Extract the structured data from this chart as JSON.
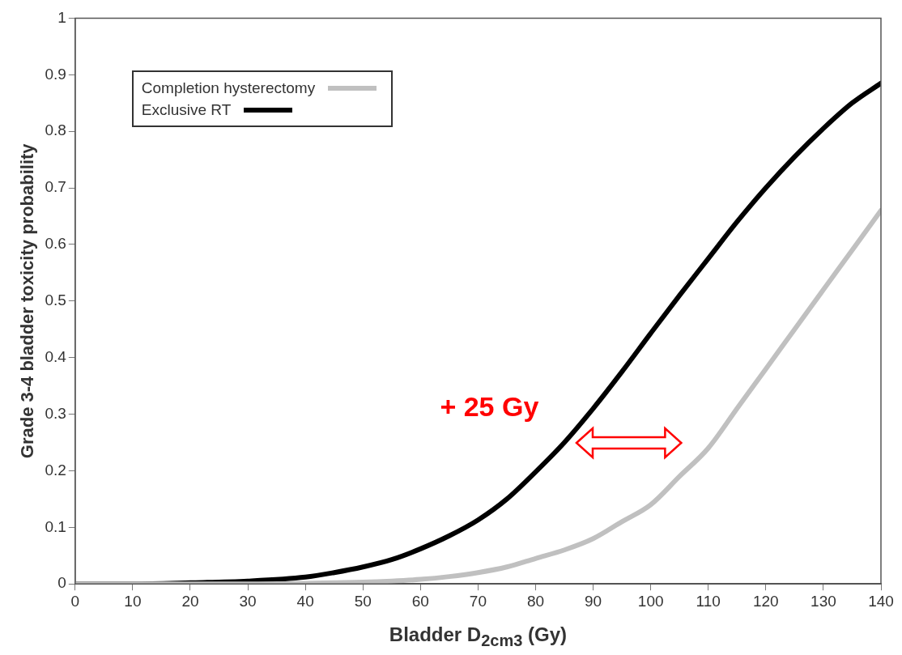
{
  "chart_data": {
    "type": "line",
    "xlabel": "Bladder D$_{2cm3}$ (Gy)",
    "ylabel": "Grade 3-4 bladder toxicity probability",
    "x": [
      0,
      10,
      20,
      30,
      40,
      45,
      50,
      55,
      60,
      65,
      70,
      75,
      80,
      85,
      90,
      95,
      100,
      105,
      110,
      115,
      120,
      125,
      130,
      135,
      140
    ],
    "series": [
      {
        "name": "Completion hysterectomy",
        "color": "#c0c0c0",
        "values": [
          0,
          0,
          0,
          0,
          0.001,
          0.002,
          0.003,
          0.005,
          0.008,
          0.013,
          0.02,
          0.03,
          0.045,
          0.06,
          0.08,
          0.11,
          0.14,
          0.19,
          0.24,
          0.31,
          0.38,
          0.45,
          0.52,
          0.59,
          0.66
        ]
      },
      {
        "name": "Exclusive RT",
        "color": "#000000",
        "values": [
          0,
          0,
          0.002,
          0.005,
          0.012,
          0.02,
          0.03,
          0.043,
          0.062,
          0.085,
          0.113,
          0.15,
          0.198,
          0.25,
          0.31,
          0.375,
          0.443,
          0.51,
          0.575,
          0.64,
          0.7,
          0.755,
          0.805,
          0.85,
          0.885
        ]
      }
    ],
    "xlim": [
      0,
      140
    ],
    "xticks": [
      0,
      10,
      20,
      30,
      40,
      50,
      60,
      70,
      80,
      90,
      100,
      110,
      120,
      130,
      140
    ],
    "ylim": [
      0,
      1
    ],
    "yticks": [
      0,
      0.1,
      0.2,
      0.3,
      0.4,
      0.5,
      0.6,
      0.7,
      0.8,
      0.9,
      1
    ],
    "grid": false,
    "legend": "top left",
    "marker": "none",
    "line_style": "solid",
    "annotations": [
      "+ 25 Gy"
    ]
  }
}
